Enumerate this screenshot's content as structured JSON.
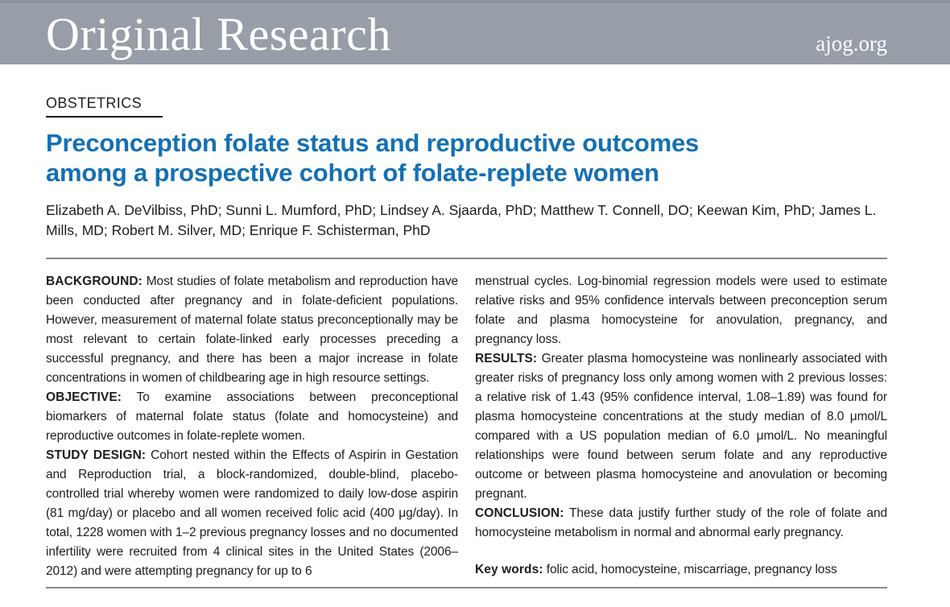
{
  "banner": {
    "title": "Original Research",
    "site": "ajog.org"
  },
  "article": {
    "section": "OBSTETRICS",
    "title_line1": "Preconception folate status and reproductive outcomes",
    "title_line2": "among a prospective cohort of folate-replete women",
    "authors": "Elizabeth A. DeVilbiss, PhD; Sunni L. Mumford, PhD; Lindsey A. Sjaarda, PhD; Matthew T. Connell, DO; Keewan Kim, PhD; James L. Mills, MD; Robert M. Silver, MD; Enrique F. Schisterman, PhD"
  },
  "abstract": {
    "left": [
      {
        "label": "BACKGROUND:",
        "text": "Most studies of folate metabolism and reproduction have been conducted after pregnancy and in folate-deficient populations. However, measurement of maternal folate status preconceptionally may be most relevant to certain folate-linked early processes preceding a successful pregnancy, and there has been a major increase in folate concentrations in women of childbearing age in high resource settings."
      },
      {
        "label": "OBJECTIVE:",
        "text": "To examine associations between preconceptional biomarkers of maternal folate status (folate and homocysteine) and reproductive outcomes in folate-replete women."
      },
      {
        "label": "STUDY DESIGN:",
        "text": "Cohort nested within the Effects of Aspirin in Gestation and Reproduction trial, a block-randomized, double-blind, placebo-controlled trial whereby women were randomized to daily low-dose aspirin (81 mg/day) or placebo and all women received folic acid (400 μg/day). In total, 1228 women with 1–2 previous pregnancy losses and no documented infertility were recruited from 4 clinical sites in the United States (2006–2012) and were attempting pregnancy for up to 6"
      }
    ],
    "right": [
      {
        "label": "",
        "text": "menstrual cycles. Log-binomial regression models were used to estimate relative risks and 95% confidence intervals between preconception serum folate and plasma homocysteine for anovulation, pregnancy, and pregnancy loss."
      },
      {
        "label": "RESULTS:",
        "text": "Greater plasma homocysteine was nonlinearly associated with greater risks of pregnancy loss only among women with 2 previous losses: a relative risk of 1.43 (95% confidence interval, 1.08–1.89) was found for plasma homocysteine concentrations at the study median of 8.0 μmol/L compared with a US population median of 6.0 μmol/L. No meaningful relationships were found between serum folate and any reproductive outcome or between plasma homocysteine and anovulation or becoming pregnant."
      },
      {
        "label": "CONCLUSION:",
        "text": "These data justify further study of the role of folate and homocysteine metabolism in normal and abnormal early pregnancy."
      }
    ],
    "keywords": {
      "label": "Key words:",
      "text": "folic acid, homocysteine, miscarriage, pregnancy loss"
    }
  },
  "colors": {
    "banner_bg": "#989ea7",
    "title_blue": "#1470b4",
    "rule_gray": "#85898e"
  }
}
